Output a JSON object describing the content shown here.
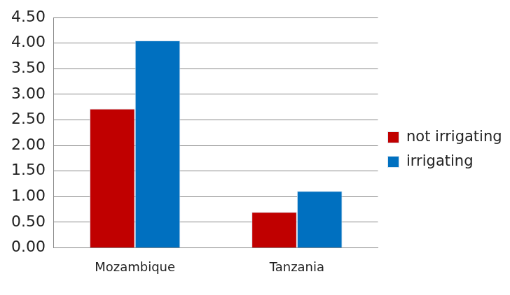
{
  "chart_data": {
    "type": "bar",
    "categories": [
      "Mozambique",
      "Tanzania"
    ],
    "series": [
      {
        "name": "not irrigating",
        "color": "#c00000",
        "values": [
          2.72,
          0.7
        ]
      },
      {
        "name": "irrigating",
        "color": "#0070c0",
        "values": [
          4.05,
          1.11
        ]
      }
    ],
    "ylim": [
      0,
      4.5
    ],
    "yticks": [
      {
        "value": 0,
        "label": "0.00"
      },
      {
        "value": 0.5,
        "label": "0.50"
      },
      {
        "value": 1,
        "label": "1.00"
      },
      {
        "value": 1.5,
        "label": "1.50"
      },
      {
        "value": 2,
        "label": "2.00"
      },
      {
        "value": 2.5,
        "label": "2.50"
      },
      {
        "value": 3,
        "label": "3.00"
      },
      {
        "value": 3.5,
        "label": "3.50"
      },
      {
        "value": 4,
        "label": "4.00"
      },
      {
        "value": 4.5,
        "label": "4.50"
      }
    ],
    "grid": true,
    "legend": "right"
  }
}
